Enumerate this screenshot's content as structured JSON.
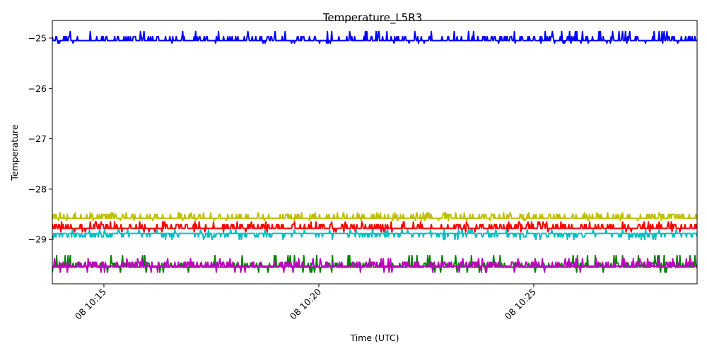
{
  "chart_data": {
    "type": "line",
    "title": "Temperature_L5R3",
    "xlabel": "Time (UTC)",
    "ylabel": "Temperature",
    "x_range": [
      "08 10:13:48",
      "08 10:28:48"
    ],
    "ylim": [
      -29.88,
      -24.65
    ],
    "x_ticks": [
      {
        "label": "08 10:15",
        "time": "08 10:15:00"
      },
      {
        "label": "08 10:20",
        "time": "08 10:20:00"
      },
      {
        "label": "08 10:25",
        "time": "08 10:25:00"
      }
    ],
    "y_ticks": [
      {
        "label": "−25",
        "value": -25
      },
      {
        "label": "−26",
        "value": -26
      },
      {
        "label": "−27",
        "value": -27
      },
      {
        "label": "−28",
        "value": -28
      },
      {
        "label": "−29",
        "value": -29
      }
    ],
    "grid": false,
    "legend": "none",
    "series": [
      {
        "color": "#0000ff",
        "baseline": -25.05,
        "alternate": -24.97,
        "spike": -24.87,
        "dip": -25.1
      },
      {
        "color": "#bfbf00",
        "baseline": -28.58,
        "alternate": -28.5,
        "spike": -28.47,
        "dip": -28.62
      },
      {
        "color": "#ff0000",
        "baseline": -28.78,
        "alternate": -28.7,
        "spike": -28.65,
        "dip": -28.85
      },
      {
        "color": "#00bfbf",
        "baseline": -28.88,
        "alternate": -28.95,
        "spike": -28.8,
        "dip": -29.0
      },
      {
        "color": "#008000",
        "baseline": -29.55,
        "alternate": -29.47,
        "spike": -29.32,
        "dip": -29.65
      },
      {
        "color": "#bf00bf",
        "baseline": -29.53,
        "alternate": -29.45,
        "spike": -29.38,
        "dip": -29.65
      }
    ]
  }
}
